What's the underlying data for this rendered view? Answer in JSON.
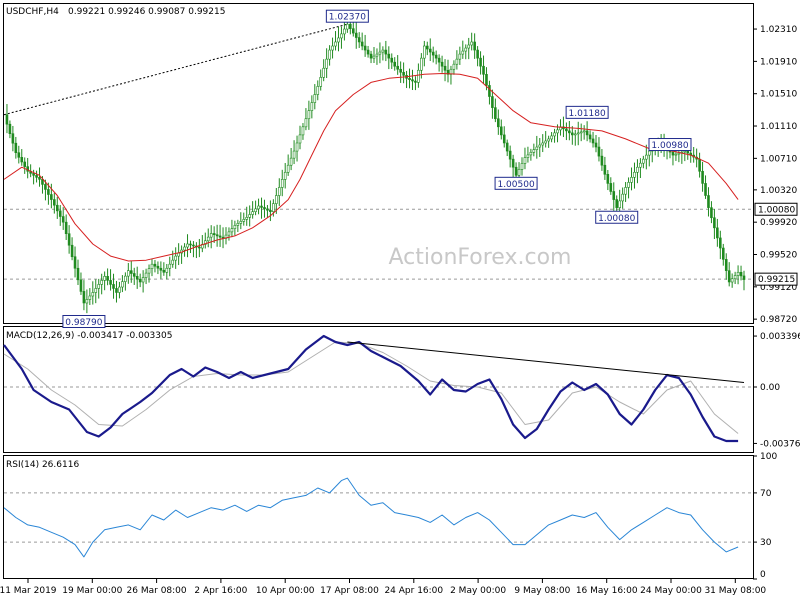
{
  "header": {
    "title": "USDCHF,H4",
    "ohlc": "0.99221 0.99246 0.99087 0.99215"
  },
  "watermark": "ActionForex.com",
  "colors": {
    "candle": "#1f8a1f",
    "ma": "#d62020",
    "macd": "#1a1a8c",
    "signal": "#b0b0b0",
    "rsi": "#2a86d6",
    "label_text": "#1f2a8c"
  },
  "chart_data": [
    {
      "type": "candlestick",
      "title": "USDCHF,H4",
      "ylim": [
        0.9866,
        1.0262
      ],
      "y_ticks": [
        "1.02310",
        "1.01910",
        "1.01510",
        "1.01110",
        "1.00710",
        "1.00320",
        "0.99920",
        "0.99520",
        "0.99120",
        "0.98720"
      ],
      "x_ticks": [
        "11 Mar 2019",
        "19 Mar 00:00",
        "26 Mar 08:00",
        "2 Apr 16:00",
        "10 Apr 00:00",
        "17 Apr 08:00",
        "24 Apr 16:00",
        "2 May 00:00",
        "9 May 08:00",
        "16 May 16:00",
        "24 May 00:00",
        "31 May 08:00"
      ],
      "close_path": [
        [
          0,
          1.0125
        ],
        [
          4,
          1.0078
        ],
        [
          8,
          1.0055
        ],
        [
          12,
          1.0045
        ],
        [
          16,
          1.002
        ],
        [
          20,
          0.9992
        ],
        [
          24,
          0.9935
        ],
        [
          27,
          0.9892
        ],
        [
          30,
          0.9905
        ],
        [
          34,
          0.9925
        ],
        [
          38,
          0.9905
        ],
        [
          42,
          0.9932
        ],
        [
          46,
          0.9918
        ],
        [
          50,
          0.994
        ],
        [
          54,
          0.993
        ],
        [
          58,
          0.995
        ],
        [
          62,
          0.9965
        ],
        [
          66,
          0.996
        ],
        [
          70,
          0.9978
        ],
        [
          74,
          0.9972
        ],
        [
          78,
          0.9988
        ],
        [
          82,
          0.9998
        ],
        [
          86,
          1.0012
        ],
        [
          90,
          1.0005
        ],
        [
          94,
          1.0045
        ],
        [
          98,
          1.008
        ],
        [
          102,
          1.012
        ],
        [
          106,
          1.016
        ],
        [
          110,
          1.0205
        ],
        [
          114,
          1.0225
        ],
        [
          116,
          1.0237
        ],
        [
          120,
          1.0215
        ],
        [
          124,
          1.0195
        ],
        [
          128,
          1.0205
        ],
        [
          132,
          1.0185
        ],
        [
          136,
          1.017
        ],
        [
          139,
          1.0165
        ],
        [
          142,
          1.021
        ],
        [
          146,
          1.0195
        ],
        [
          150,
          1.0175
        ],
        [
          154,
          1.02
        ],
        [
          158,
          1.0215
        ],
        [
          162,
          1.0175
        ],
        [
          166,
          1.012
        ],
        [
          170,
          1.008
        ],
        [
          173,
          1.005
        ],
        [
          176,
          1.0072
        ],
        [
          180,
          1.0085
        ],
        [
          184,
          1.0095
        ],
        [
          188,
          1.011
        ],
        [
          192,
          1.01
        ],
        [
          196,
          1.0105
        ],
        [
          200,
          1.0085
        ],
        [
          204,
          1.004
        ],
        [
          207,
          1.001
        ],
        [
          210,
          1.0035
        ],
        [
          214,
          1.006
        ],
        [
          218,
          1.008
        ],
        [
          222,
          1.009
        ],
        [
          226,
          1.0075
        ],
        [
          230,
          1.008
        ],
        [
          234,
          1.007
        ],
        [
          238,
          1.001
        ],
        [
          242,
          0.996
        ],
        [
          245,
          0.9918
        ],
        [
          248,
          0.993
        ],
        [
          250,
          0.9921
        ]
      ],
      "moving_average_path": [
        [
          0,
          1.0045
        ],
        [
          6,
          1.006
        ],
        [
          12,
          1.005
        ],
        [
          18,
          1.0025
        ],
        [
          24,
          0.999
        ],
        [
          30,
          0.9965
        ],
        [
          36,
          0.995
        ],
        [
          42,
          0.9944
        ],
        [
          48,
          0.9945
        ],
        [
          54,
          0.995
        ],
        [
          60,
          0.9955
        ],
        [
          66,
          0.9963
        ],
        [
          72,
          0.997
        ],
        [
          78,
          0.9975
        ],
        [
          84,
          0.9985
        ],
        [
          90,
          1.0
        ],
        [
          96,
          1.002
        ],
        [
          100,
          1.0045
        ],
        [
          104,
          1.0075
        ],
        [
          108,
          1.0105
        ],
        [
          112,
          1.013
        ],
        [
          118,
          1.015
        ],
        [
          124,
          1.0165
        ],
        [
          130,
          1.017
        ],
        [
          136,
          1.0172
        ],
        [
          142,
          1.0175
        ],
        [
          148,
          1.0176
        ],
        [
          154,
          1.0175
        ],
        [
          160,
          1.017
        ],
        [
          166,
          1.015
        ],
        [
          172,
          1.013
        ],
        [
          178,
          1.0115
        ],
        [
          186,
          1.011
        ],
        [
          194,
          1.0108
        ],
        [
          202,
          1.0105
        ],
        [
          210,
          1.0095
        ],
        [
          218,
          1.0083
        ],
        [
          226,
          1.008
        ],
        [
          232,
          1.0075
        ],
        [
          238,
          1.0065
        ],
        [
          244,
          1.004
        ],
        [
          248,
          1.002
        ]
      ],
      "labels": [
        {
          "text": "1.02370",
          "x": 116,
          "value": 1.0237
        },
        {
          "text": "0.98790",
          "x": 27,
          "value": 0.9879
        },
        {
          "text": "1.00500",
          "x": 173,
          "value": 1.005
        },
        {
          "text": "1.01180",
          "x": 197,
          "value": 1.0118
        },
        {
          "text": "1.00980",
          "x": 225,
          "value": 1.0098
        },
        {
          "text": "1.00080",
          "x": 207,
          "value": 1.0008
        }
      ],
      "reference_levels": [
        {
          "label": "1.00080",
          "value": 1.0008
        },
        {
          "label": "0.99215",
          "value": 0.99215
        }
      ],
      "trendline": [
        [
          0,
          1.0125
        ],
        [
          116,
          1.0237
        ]
      ]
    },
    {
      "type": "line",
      "title": "MACD(12,26,9) -0.003417 -0.003305",
      "ylim": [
        -0.0044,
        0.004
      ],
      "y_ticks": [
        "0.003396",
        "0.00",
        "-0.003762"
      ],
      "macd_path": [
        [
          0,
          0.0028
        ],
        [
          6,
          0.0012
        ],
        [
          10,
          -0.0002
        ],
        [
          16,
          -0.001
        ],
        [
          22,
          -0.0015
        ],
        [
          28,
          -0.003
        ],
        [
          32,
          -0.0033
        ],
        [
          36,
          -0.0027
        ],
        [
          40,
          -0.0018
        ],
        [
          46,
          -0.001
        ],
        [
          50,
          -0.0004
        ],
        [
          56,
          0.0008
        ],
        [
          60,
          0.0012
        ],
        [
          64,
          0.0007
        ],
        [
          68,
          0.0013
        ],
        [
          72,
          0.001
        ],
        [
          76,
          0.0006
        ],
        [
          80,
          0.001
        ],
        [
          84,
          0.0006
        ],
        [
          90,
          0.0009
        ],
        [
          96,
          0.0012
        ],
        [
          102,
          0.0025
        ],
        [
          108,
          0.0034
        ],
        [
          112,
          0.003
        ],
        [
          116,
          0.0028
        ],
        [
          120,
          0.003
        ],
        [
          124,
          0.0024
        ],
        [
          128,
          0.002
        ],
        [
          134,
          0.0014
        ],
        [
          140,
          0.0004
        ],
        [
          144,
          -0.0005
        ],
        [
          148,
          0.0005
        ],
        [
          152,
          -0.0002
        ],
        [
          156,
          -0.0003
        ],
        [
          160,
          0.0002
        ],
        [
          164,
          0.0005
        ],
        [
          168,
          -0.0008
        ],
        [
          172,
          -0.0025
        ],
        [
          176,
          -0.0034
        ],
        [
          180,
          -0.0028
        ],
        [
          184,
          -0.0015
        ],
        [
          188,
          -0.0003
        ],
        [
          192,
          0.0003
        ],
        [
          196,
          -0.0002
        ],
        [
          200,
          0.0002
        ],
        [
          204,
          -0.0005
        ],
        [
          208,
          -0.0018
        ],
        [
          212,
          -0.0025
        ],
        [
          216,
          -0.0015
        ],
        [
          220,
          -0.0002
        ],
        [
          224,
          0.0008
        ],
        [
          228,
          0.0006
        ],
        [
          232,
          -0.0005
        ],
        [
          236,
          -0.002
        ],
        [
          240,
          -0.0033
        ],
        [
          244,
          -0.0036
        ],
        [
          248,
          -0.0036
        ]
      ],
      "signal_path": [
        [
          0,
          0.0022
        ],
        [
          8,
          0.0012
        ],
        [
          16,
          -0.0002
        ],
        [
          24,
          -0.0012
        ],
        [
          32,
          -0.0025
        ],
        [
          40,
          -0.0026
        ],
        [
          48,
          -0.0015
        ],
        [
          56,
          -0.0002
        ],
        [
          64,
          0.0007
        ],
        [
          72,
          0.0009
        ],
        [
          80,
          0.0008
        ],
        [
          88,
          0.0008
        ],
        [
          96,
          0.001
        ],
        [
          104,
          0.002
        ],
        [
          112,
          0.003
        ],
        [
          120,
          0.0029
        ],
        [
          128,
          0.0023
        ],
        [
          136,
          0.0014
        ],
        [
          144,
          0.0004
        ],
        [
          152,
          0.0001
        ],
        [
          160,
          0.0
        ],
        [
          168,
          -0.0004
        ],
        [
          176,
          -0.0025
        ],
        [
          184,
          -0.0022
        ],
        [
          192,
          -0.0004
        ],
        [
          200,
          -0.0
        ],
        [
          208,
          -0.001
        ],
        [
          216,
          -0.0018
        ],
        [
          224,
          -0.0002
        ],
        [
          232,
          0.0004
        ],
        [
          240,
          -0.0018
        ],
        [
          248,
          -0.0031
        ]
      ],
      "trendline": [
        [
          116,
          0.003
        ],
        [
          250,
          0.0003
        ]
      ],
      "zero_line": 0.0
    },
    {
      "type": "line",
      "title": "RSI(14) 26.6116",
      "ylim": [
        0,
        100
      ],
      "y_ticks": [
        "100",
        "70",
        "30",
        "0"
      ],
      "levels": [
        70,
        30
      ],
      "rsi_path": [
        [
          0,
          58
        ],
        [
          4,
          50
        ],
        [
          8,
          44
        ],
        [
          12,
          42
        ],
        [
          16,
          38
        ],
        [
          20,
          34
        ],
        [
          24,
          28
        ],
        [
          27,
          18
        ],
        [
          30,
          30
        ],
        [
          34,
          40
        ],
        [
          38,
          42
        ],
        [
          42,
          44
        ],
        [
          46,
          40
        ],
        [
          50,
          52
        ],
        [
          54,
          48
        ],
        [
          58,
          56
        ],
        [
          62,
          50
        ],
        [
          66,
          54
        ],
        [
          70,
          58
        ],
        [
          74,
          56
        ],
        [
          78,
          60
        ],
        [
          82,
          55
        ],
        [
          86,
          60
        ],
        [
          90,
          58
        ],
        [
          94,
          64
        ],
        [
          98,
          66
        ],
        [
          102,
          68
        ],
        [
          106,
          74
        ],
        [
          110,
          70
        ],
        [
          114,
          80
        ],
        [
          116,
          82
        ],
        [
          120,
          68
        ],
        [
          124,
          60
        ],
        [
          128,
          62
        ],
        [
          132,
          54
        ],
        [
          136,
          52
        ],
        [
          140,
          50
        ],
        [
          144,
          46
        ],
        [
          148,
          52
        ],
        [
          152,
          44
        ],
        [
          156,
          50
        ],
        [
          160,
          54
        ],
        [
          164,
          48
        ],
        [
          168,
          38
        ],
        [
          172,
          28
        ],
        [
          176,
          28
        ],
        [
          180,
          36
        ],
        [
          184,
          44
        ],
        [
          188,
          48
        ],
        [
          192,
          52
        ],
        [
          196,
          50
        ],
        [
          200,
          54
        ],
        [
          204,
          42
        ],
        [
          208,
          32
        ],
        [
          212,
          40
        ],
        [
          216,
          46
        ],
        [
          220,
          52
        ],
        [
          224,
          58
        ],
        [
          228,
          54
        ],
        [
          232,
          52
        ],
        [
          236,
          40
        ],
        [
          240,
          30
        ],
        [
          244,
          22
        ],
        [
          248,
          26
        ]
      ]
    }
  ]
}
